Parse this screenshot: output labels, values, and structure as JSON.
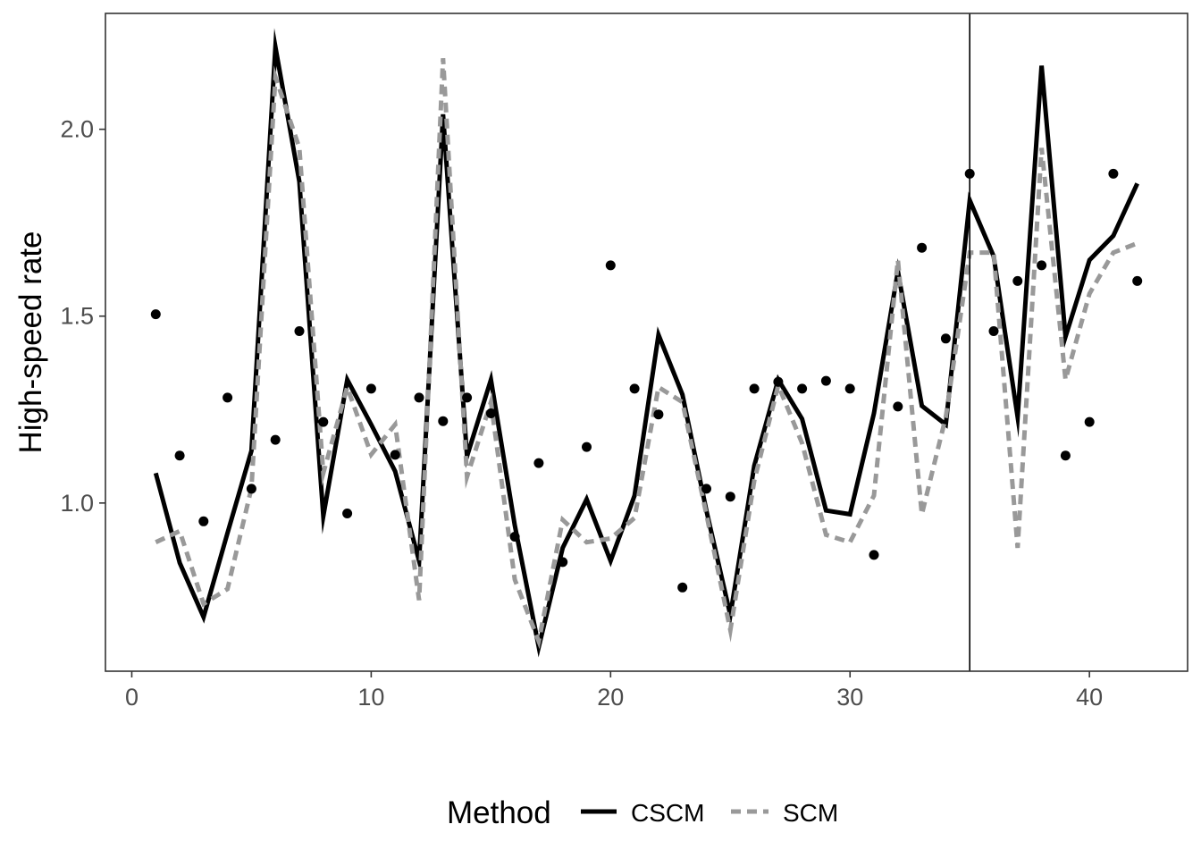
{
  "chart_data": {
    "type": "line",
    "title": "",
    "xlabel": "",
    "ylabel": "High-speed rate",
    "xlim": [
      -1.1,
      44.1
    ],
    "ylim": [
      0.55,
      2.31
    ],
    "x_ticks": [
      0,
      10,
      20,
      30,
      40
    ],
    "y_ticks": [
      1.0,
      1.5,
      2.0
    ],
    "y_tick_labels": [
      "1.0",
      "1.5",
      "2.0"
    ],
    "grid": false,
    "vline_x": 35,
    "legend": {
      "title": "Method",
      "placement": "bottom"
    },
    "x": [
      1,
      2,
      3,
      4,
      5,
      6,
      7,
      8,
      9,
      10,
      11,
      12,
      13,
      14,
      15,
      16,
      17,
      18,
      19,
      20,
      21,
      22,
      23,
      24,
      25,
      26,
      27,
      28,
      29,
      30,
      31,
      32,
      33,
      34,
      35,
      36,
      37,
      38,
      39,
      40,
      41,
      42
    ],
    "observed": {
      "values": [
        1.505,
        1.127,
        0.951,
        1.282,
        1.038,
        1.169,
        1.46,
        1.217,
        0.972,
        1.306,
        1.129,
        1.282,
        1.219,
        1.282,
        1.24,
        0.91,
        1.107,
        0.842,
        1.15,
        1.636,
        1.306,
        1.237,
        0.774,
        1.038,
        1.017,
        1.306,
        1.324,
        1.306,
        1.327,
        1.306,
        0.861,
        1.258,
        1.683,
        1.44,
        1.881,
        1.46,
        1.594,
        1.636,
        1.127,
        1.217,
        1.881,
        1.594
      ],
      "color": "#000000"
    },
    "series": [
      {
        "name": "CSCM",
        "color": "#000000",
        "dash": "solid",
        "values": [
          1.08,
          0.84,
          0.695,
          0.92,
          1.14,
          2.22,
          1.86,
          0.965,
          1.33,
          1.21,
          1.085,
          0.845,
          2.04,
          1.125,
          1.33,
          0.94,
          0.615,
          0.88,
          1.01,
          0.845,
          1.02,
          1.45,
          1.29,
          0.98,
          0.7,
          1.1,
          1.33,
          1.225,
          0.98,
          0.97,
          1.24,
          1.62,
          1.26,
          1.21,
          1.81,
          1.66,
          1.23,
          2.17,
          1.445,
          1.65,
          1.715,
          1.855
        ]
      },
      {
        "name": "SCM",
        "color": "#999999",
        "dash": "dashed",
        "values": [
          0.895,
          0.925,
          0.73,
          0.77,
          1.04,
          2.14,
          1.95,
          1.08,
          1.31,
          1.13,
          1.21,
          0.74,
          2.19,
          1.07,
          1.27,
          0.795,
          0.63,
          0.955,
          0.895,
          0.905,
          0.96,
          1.31,
          1.27,
          0.97,
          0.66,
          1.06,
          1.315,
          1.16,
          0.915,
          0.895,
          1.02,
          1.65,
          0.97,
          1.23,
          1.67,
          1.67,
          0.88,
          1.95,
          1.33,
          1.56,
          1.67,
          1.695
        ]
      }
    ]
  }
}
